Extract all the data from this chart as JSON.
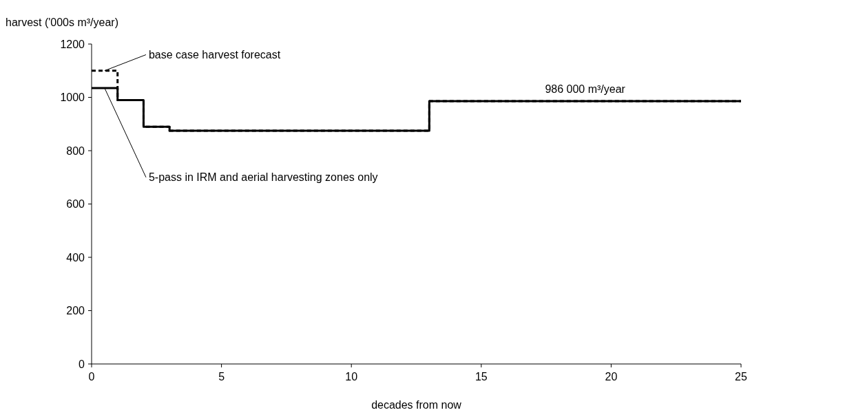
{
  "chart_data": {
    "type": "step",
    "xlabel": "decades from now",
    "ylabel": "harvest ('000s m³/year)",
    "xlim": [
      0,
      25
    ],
    "xticks": [
      0,
      5,
      10,
      15,
      20,
      25
    ],
    "ylim": [
      0,
      1200
    ],
    "yticks": [
      0,
      200,
      400,
      600,
      800,
      1000,
      1200
    ],
    "grid": false,
    "marker": "none",
    "x": [
      0,
      1,
      2,
      3,
      13,
      25
    ],
    "series": [
      {
        "name": "base case harvest forecast",
        "color": "#000000",
        "line_style": "dashed",
        "values": [
          1100,
          990,
          890,
          875,
          986,
          986
        ]
      },
      {
        "name": "5-pass in IRM and aerial harvesting zones only",
        "color": "#000000",
        "line_style": "solid",
        "values": [
          1035,
          990,
          890,
          875,
          986,
          986
        ]
      }
    ],
    "annotations": [
      {
        "text": "986 000 m³/year",
        "x": 19,
        "y": 986
      }
    ]
  }
}
